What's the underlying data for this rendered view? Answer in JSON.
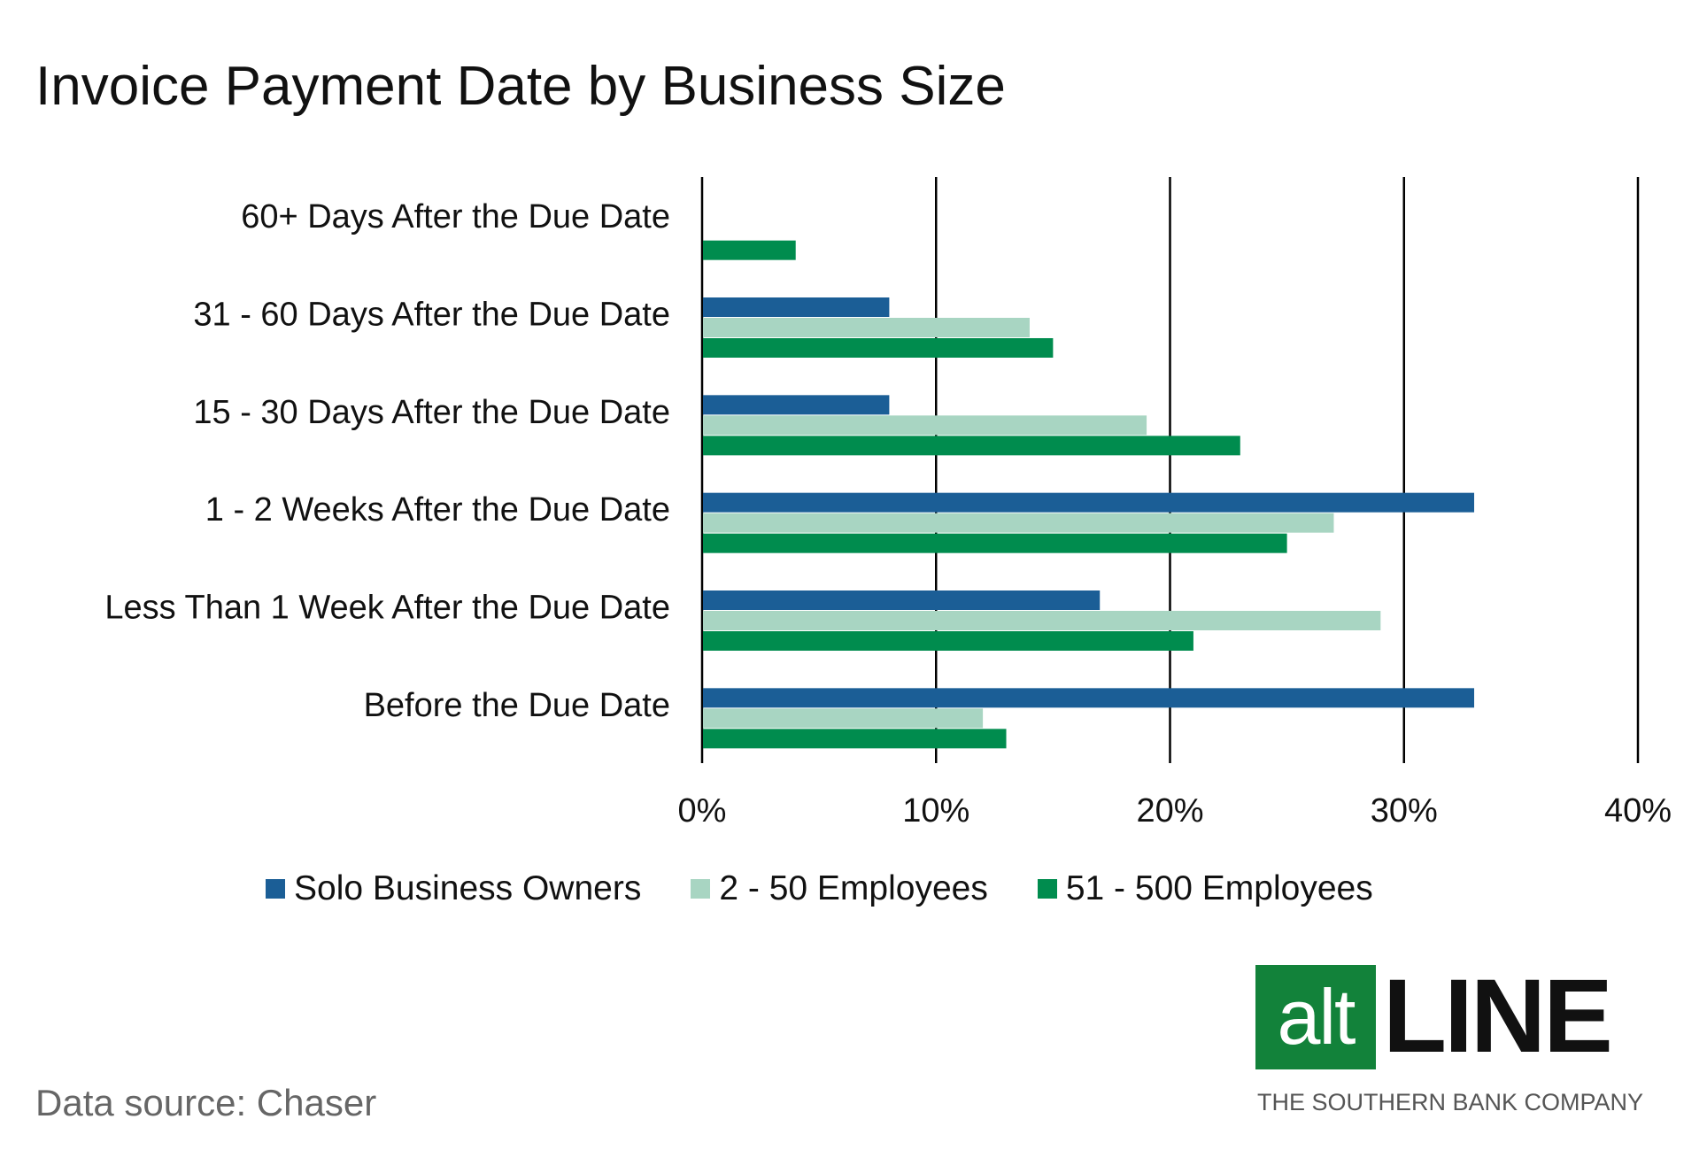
{
  "chart_data": {
    "type": "bar",
    "orientation": "horizontal",
    "title": "Invoice Payment Date by Business Size",
    "categories": [
      "60+ Days After the Due Date",
      "31 - 60 Days After the Due Date",
      "15 - 30 Days After the Due Date",
      "1 - 2 Weeks After the Due Date",
      "Less Than 1 Week After the Due Date",
      "Before the Due Date"
    ],
    "series": [
      {
        "name": "Solo Business Owners",
        "color": "#1b5e96",
        "values": [
          0,
          8,
          8,
          33,
          17,
          33
        ]
      },
      {
        "name": "2 - 50 Employees",
        "color": "#a8d5c2",
        "values": [
          0,
          14,
          19,
          27,
          29,
          12
        ]
      },
      {
        "name": "51 - 500 Employees",
        "color": "#008c4e",
        "values": [
          4,
          15,
          23,
          25,
          21,
          13
        ]
      }
    ],
    "xlim": [
      0,
      40
    ],
    "xticks": [
      "0%",
      "10%",
      "20%",
      "30%",
      "40%"
    ],
    "grid": true,
    "legend_position": "bottom"
  },
  "source_text": "Data source: Chaser",
  "logo": {
    "alt_text": "alt",
    "line_text": "LINE",
    "tagline": "THE SOUTHERN BANK COMPANY",
    "box_color": "#12823a"
  }
}
